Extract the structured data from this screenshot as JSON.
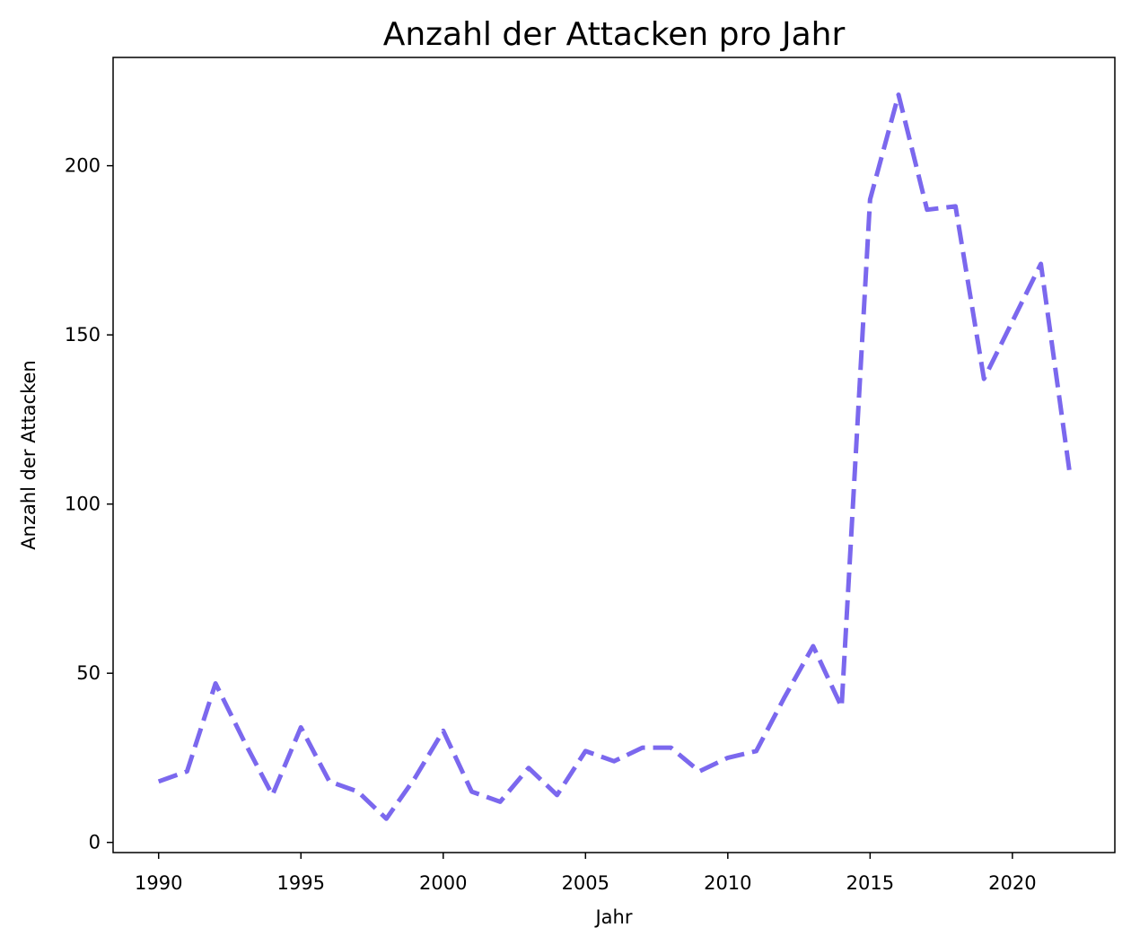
{
  "chart_data": {
    "type": "line",
    "title": "Anzahl der Attacken pro Jahr",
    "xlabel": "Jahr",
    "ylabel": "Anzahl der Attacken",
    "xlim": [
      1988.4,
      2023.6
    ],
    "ylim": [
      -3,
      232
    ],
    "xticks": [
      1990,
      1995,
      2000,
      2005,
      2010,
      2015,
      2020
    ],
    "yticks": [
      0,
      50,
      100,
      150,
      200
    ],
    "grid": false,
    "series": [
      {
        "color": "#7b68ee",
        "line_style": "dashed",
        "x": [
          1990,
          1991,
          1992,
          1993,
          1994,
          1995,
          1996,
          1997,
          1998,
          1999,
          2000,
          2001,
          2002,
          2003,
          2004,
          2005,
          2006,
          2007,
          2008,
          2009,
          2010,
          2011,
          2012,
          2013,
          2014,
          2015,
          2016,
          2017,
          2018,
          2019,
          2020,
          2021,
          2022
        ],
        "y": [
          18,
          21,
          47,
          30,
          14,
          34,
          18,
          15,
          7,
          19,
          33,
          15,
          12,
          22,
          14,
          27,
          24,
          28,
          28,
          21,
          25,
          27,
          43,
          58,
          40,
          190,
          221,
          187,
          188,
          137,
          154,
          171,
          110
        ]
      }
    ]
  }
}
